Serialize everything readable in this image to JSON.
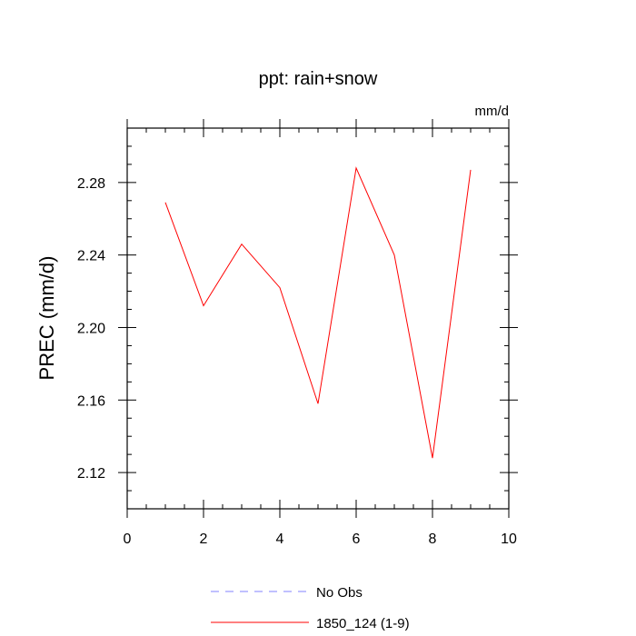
{
  "chart_data": {
    "type": "line",
    "title": "ppt: rain+snow",
    "units_label": "mm/d",
    "ylabel": "PREC  (mm/d)",
    "xlabel": "",
    "xlim": [
      0,
      10
    ],
    "ylim": [
      2.1,
      2.31
    ],
    "x_ticks": [
      0,
      2,
      4,
      6,
      8,
      10
    ],
    "x_tick_labels": [
      "0",
      "2",
      "4",
      "6",
      "8",
      "10"
    ],
    "y_ticks": [
      2.12,
      2.16,
      2.2,
      2.24,
      2.28
    ],
    "y_tick_labels": [
      "2.12",
      "2.16",
      "2.20",
      "2.24",
      "2.28"
    ],
    "grid": false,
    "legend_position": "bottom",
    "series": [
      {
        "name": "1850_124 (1-9)",
        "color": "#ff0000",
        "dash": "solid",
        "x": [
          1,
          2,
          3,
          4,
          5,
          6,
          7,
          8,
          9
        ],
        "values": [
          2.269,
          2.212,
          2.246,
          2.222,
          2.158,
          2.288,
          2.24,
          2.128,
          2.287
        ]
      }
    ],
    "legend": [
      {
        "label": "No Obs",
        "color": "#8080ff",
        "dash": "dashed"
      },
      {
        "label": "1850_124 (1-9)",
        "color": "#ff0000",
        "dash": "solid"
      }
    ]
  }
}
